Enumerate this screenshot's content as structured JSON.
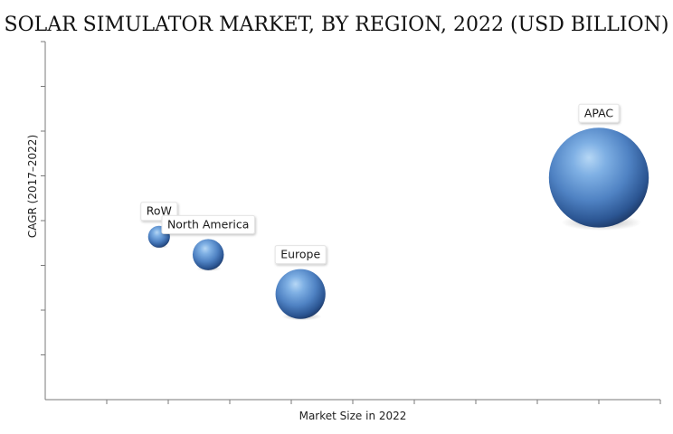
{
  "chart_data": {
    "type": "bubble",
    "title": "SOLAR SIMULATOR MARKET, BY REGION, 2022 (USD BILLION)",
    "xlabel": "Market Size in 2022",
    "ylabel": "CAGR (2017–2022)",
    "grid": false,
    "legend": "none",
    "xlim": [
      0,
      100
    ],
    "ylim": [
      0,
      100
    ],
    "series": [
      {
        "name": "RoW",
        "x": 18.5,
        "y": 45.5,
        "size": 3.5
      },
      {
        "name": "North America",
        "x": 26.5,
        "y": 40.5,
        "size": 5.0
      },
      {
        "name": "Europe",
        "x": 41.5,
        "y": 29.5,
        "size": 8.0
      },
      {
        "name": "APAC",
        "x": 90.0,
        "y": 62.0,
        "size": 16.0
      }
    ]
  },
  "colors": {
    "bubble_highlight": "#b6d7f5",
    "bubble_mid": "#5286c6",
    "bubble_dark": "#1f3c6b",
    "axis": "#7a7a7a"
  }
}
